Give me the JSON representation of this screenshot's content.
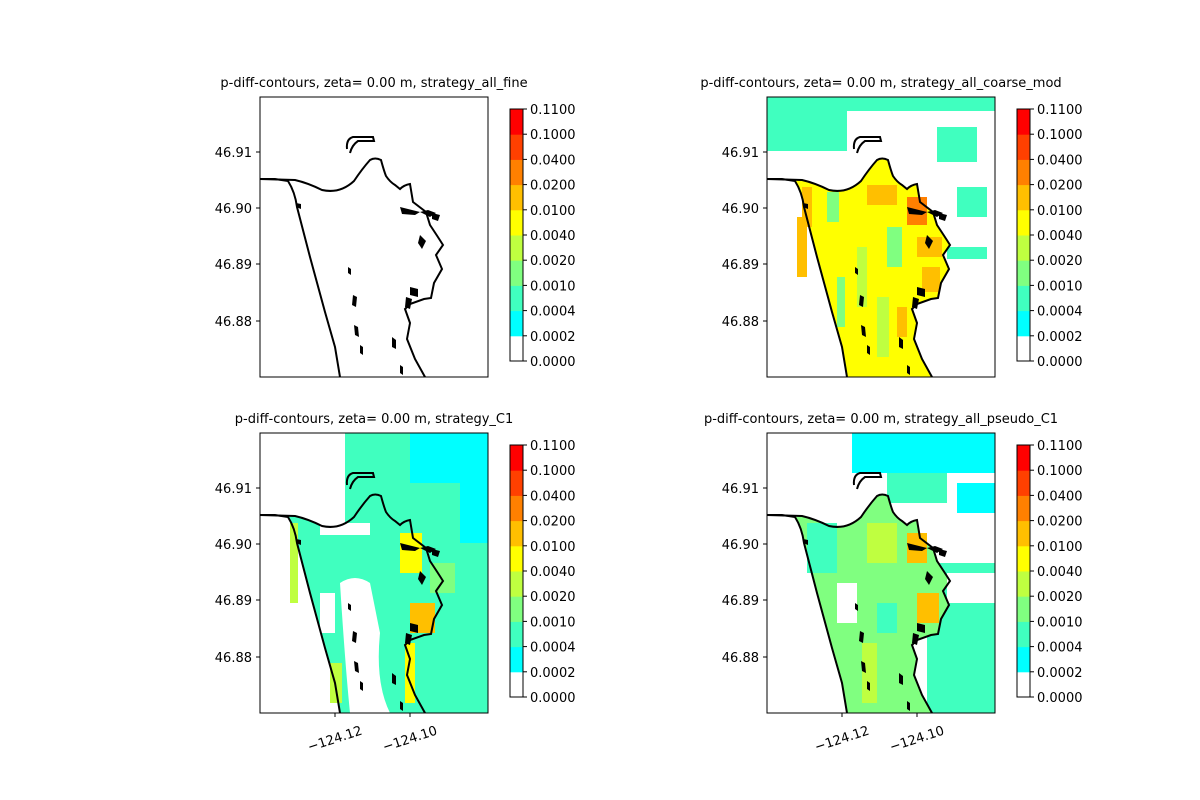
{
  "figure": {
    "panels": [
      {
        "title": "p-diff-contours, zeta= 0.00 m, strategy_all_fine",
        "fill": "none"
      },
      {
        "title": "p-diff-contours, zeta= 0.00 m, strategy_all_coarse_mod",
        "fill": "coarse_mod"
      },
      {
        "title": "p-diff-contours, zeta= 0.00 m, strategy_C1",
        "fill": "c1"
      },
      {
        "title": "p-diff-contours, zeta= 0.00 m, strategy_all_pseudo_C1",
        "fill": "pseudo_c1"
      }
    ]
  },
  "chart_data": {
    "type": "heatmap",
    "layout": "2x2 grid of contour maps, each with its own colorbar",
    "y_ticks": [
      "46.91",
      "46.90",
      "46.89",
      "46.88"
    ],
    "x_ticks": [
      "−124.12",
      "−124.10"
    ],
    "x_tick_labels_shown_on": "bottom row only",
    "colorbar_levels": [
      "0.0000",
      "0.0002",
      "0.0004",
      "0.0010",
      "0.0020",
      "0.0040",
      "0.0100",
      "0.0200",
      "0.0400",
      "0.1000",
      "0.1100"
    ],
    "colorbar_colors": [
      "#ffffff",
      "#00ffff",
      "#40ffbf",
      "#80ff80",
      "#bfff40",
      "#ffff00",
      "#ffbf00",
      "#ff8000",
      "#ff4000",
      "#ff0000"
    ],
    "grid": false,
    "coastline_color": "#000000"
  }
}
